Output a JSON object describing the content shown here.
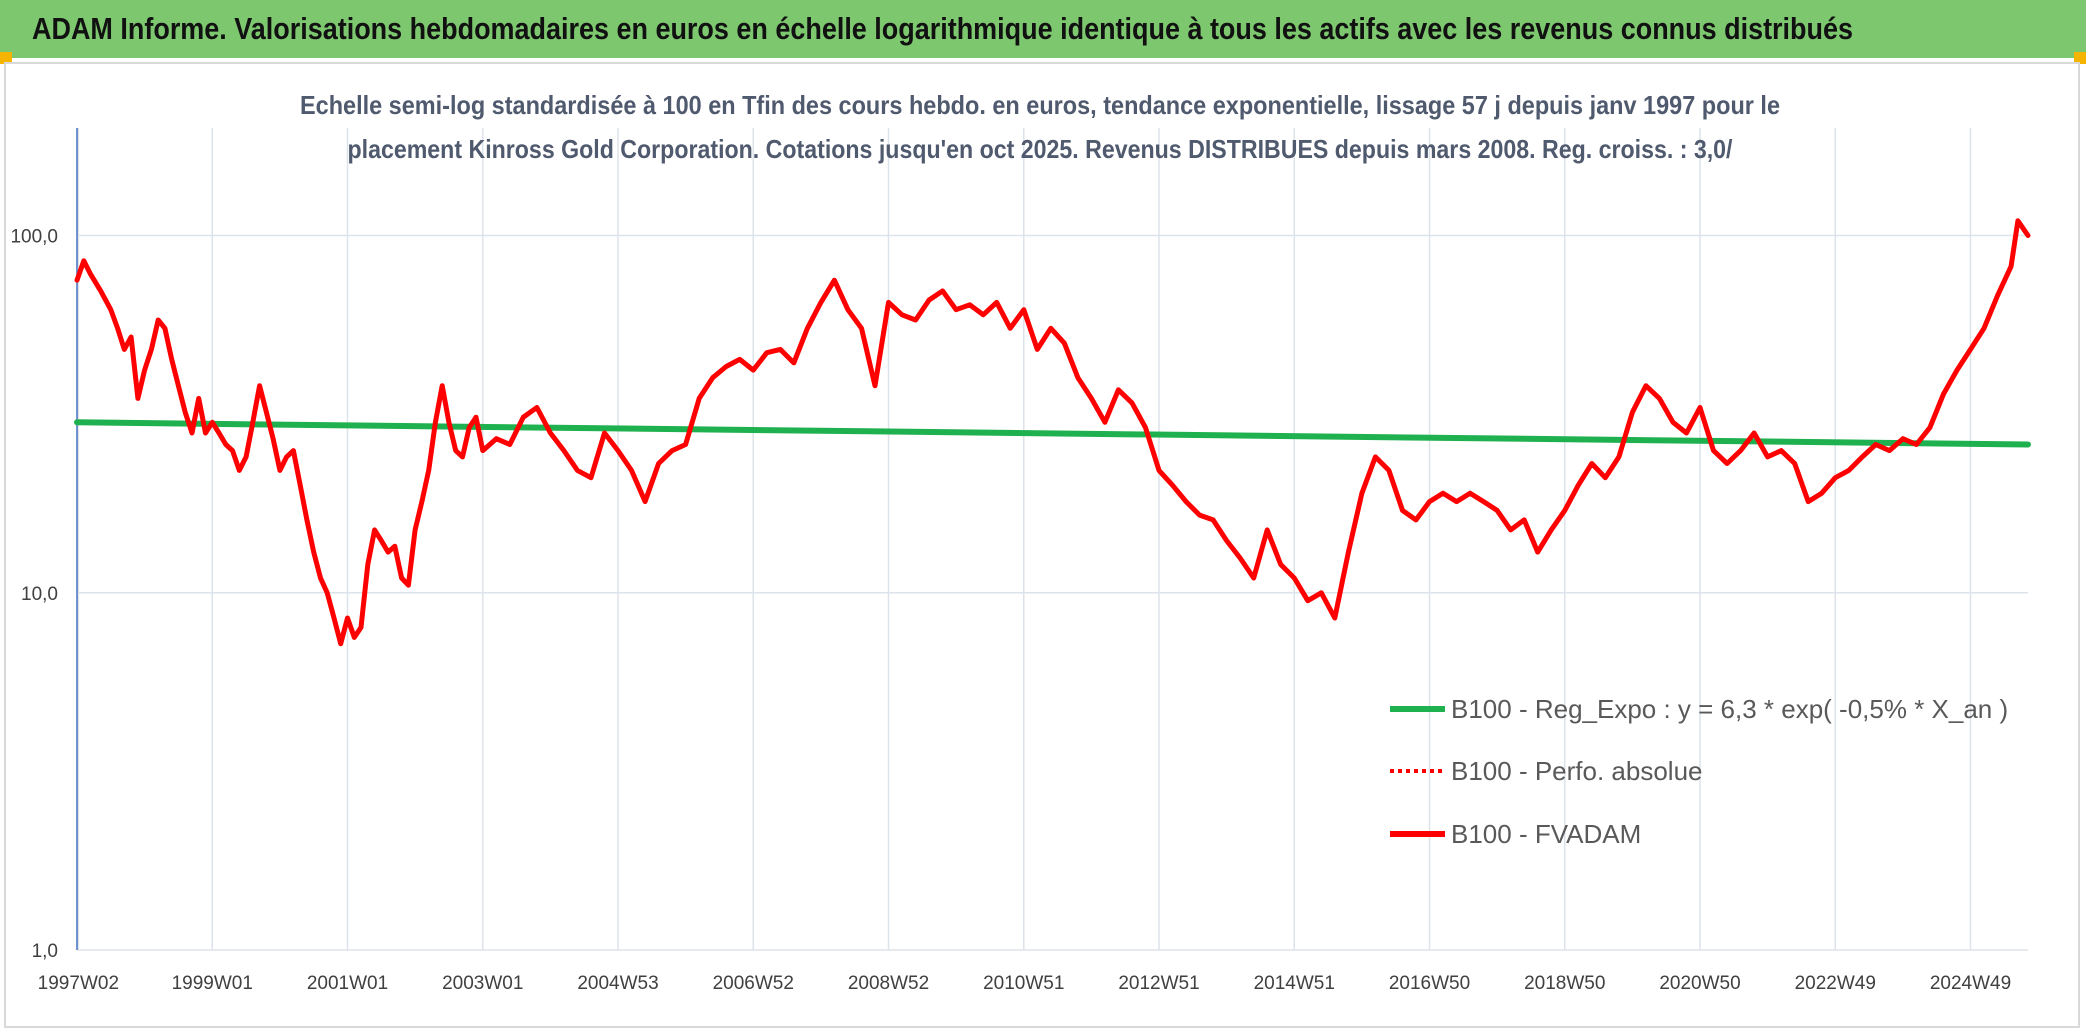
{
  "banner": {
    "title": "ADAM Informe. Valorisations hebdomadaires en euros en échelle logarithmique identique à tous les actifs avec les revenus connus distribués"
  },
  "colors": {
    "banner": "#7dc86f",
    "fvadam": "#ff0000",
    "regression": "#1fb04f",
    "grid": "#dde3ea"
  },
  "chart_data": {
    "type": "line",
    "title_lines": [
      "Echelle semi-log standardisée à 100 en Tfin des cours hebdo. en euros, tendance exponentielle, lissage 57 j depuis janv 1997 pour le",
      "placement Kinross Gold Corporation. Cotations jusqu'en oct 2025. Revenus DISTRIBUES depuis mars 2008. Reg. croiss. : 3,0/"
    ],
    "y_scale": "log",
    "ylim": [
      1,
      200
    ],
    "y_ticks": [
      {
        "value": 100,
        "label": "100,0"
      },
      {
        "value": 10,
        "label": "10,0"
      },
      {
        "value": 1,
        "label": "1,0"
      }
    ],
    "xlim": [
      1997.0,
      2025.85
    ],
    "x_ticks": [
      {
        "x": 1997.02,
        "label": "1997W02"
      },
      {
        "x": 1999.0,
        "label": "1999W01"
      },
      {
        "x": 2001.0,
        "label": "2001W01"
      },
      {
        "x": 2003.0,
        "label": "2003W01"
      },
      {
        "x": 2005.0,
        "label": "2004W53"
      },
      {
        "x": 2007.0,
        "label": "2006W52"
      },
      {
        "x": 2009.0,
        "label": "2008W52"
      },
      {
        "x": 2011.0,
        "label": "2010W51"
      },
      {
        "x": 2013.0,
        "label": "2012W51"
      },
      {
        "x": 2015.0,
        "label": "2014W51"
      },
      {
        "x": 2017.0,
        "label": "2016W50"
      },
      {
        "x": 2019.0,
        "label": "2018W50"
      },
      {
        "x": 2021.0,
        "label": "2020W50"
      },
      {
        "x": 2023.0,
        "label": "2022W49"
      },
      {
        "x": 2025.0,
        "label": "2024W49"
      }
    ],
    "legend_position": "right-middle",
    "series": [
      {
        "name": "B100 - Reg_Expo : y = 6,3 * exp( -0,5% *  X_an )",
        "style": "solid",
        "color": "#1fb04f",
        "x": [
          1997.0,
          2025.85
        ],
        "y": [
          30.0,
          26.0
        ]
      },
      {
        "name": "B100 - Perfo. absolue",
        "style": "dotted",
        "color": "#ff0000",
        "x": [],
        "y": []
      },
      {
        "name": "B100 - FVADAM",
        "style": "solid",
        "color": "#ff0000",
        "x": [
          1997.0,
          1997.1,
          1997.2,
          1997.35,
          1997.5,
          1997.6,
          1997.7,
          1997.8,
          1997.9,
          1998.0,
          1998.1,
          1998.2,
          1998.3,
          1998.4,
          1998.5,
          1998.6,
          1998.7,
          1998.8,
          1998.9,
          1999.0,
          1999.1,
          1999.2,
          1999.3,
          1999.4,
          1999.5,
          1999.6,
          1999.7,
          1999.8,
          1999.9,
          2000.0,
          2000.1,
          2000.2,
          2000.3,
          2000.4,
          2000.5,
          2000.6,
          2000.7,
          2000.8,
          2000.9,
          2001.0,
          2001.1,
          2001.2,
          2001.3,
          2001.4,
          2001.5,
          2001.6,
          2001.7,
          2001.8,
          2001.9,
          2002.0,
          2002.1,
          2002.2,
          2002.3,
          2002.4,
          2002.5,
          2002.6,
          2002.7,
          2002.8,
          2002.9,
          2003.0,
          2003.2,
          2003.4,
          2003.6,
          2003.8,
          2004.0,
          2004.2,
          2004.4,
          2004.6,
          2004.8,
          2005.0,
          2005.2,
          2005.4,
          2005.6,
          2005.8,
          2006.0,
          2006.2,
          2006.4,
          2006.6,
          2006.8,
          2007.0,
          2007.2,
          2007.4,
          2007.6,
          2007.8,
          2008.0,
          2008.2,
          2008.4,
          2008.6,
          2008.8,
          2009.0,
          2009.2,
          2009.4,
          2009.6,
          2009.8,
          2010.0,
          2010.2,
          2010.4,
          2010.6,
          2010.8,
          2011.0,
          2011.2,
          2011.4,
          2011.6,
          2011.8,
          2012.0,
          2012.2,
          2012.4,
          2012.6,
          2012.8,
          2013.0,
          2013.2,
          2013.4,
          2013.6,
          2013.8,
          2014.0,
          2014.2,
          2014.4,
          2014.6,
          2014.8,
          2015.0,
          2015.2,
          2015.4,
          2015.6,
          2015.8,
          2016.0,
          2016.2,
          2016.4,
          2016.6,
          2016.8,
          2017.0,
          2017.2,
          2017.4,
          2017.6,
          2017.8,
          2018.0,
          2018.2,
          2018.4,
          2018.6,
          2018.8,
          2019.0,
          2019.2,
          2019.4,
          2019.6,
          2019.8,
          2020.0,
          2020.2,
          2020.4,
          2020.6,
          2020.8,
          2021.0,
          2021.2,
          2021.4,
          2021.6,
          2021.8,
          2022.0,
          2022.2,
          2022.4,
          2022.6,
          2022.8,
          2023.0,
          2023.2,
          2023.4,
          2023.6,
          2023.8,
          2024.0,
          2024.2,
          2024.4,
          2024.6,
          2024.8,
          2025.0,
          2025.2,
          2025.4,
          2025.6,
          2025.7,
          2025.85
        ],
        "y": [
          75,
          85,
          78,
          70,
          62,
          55,
          48,
          52,
          35,
          42,
          48,
          58,
          55,
          45,
          38,
          32,
          28,
          35,
          28,
          30,
          28,
          26,
          25,
          22,
          24,
          30,
          38,
          32,
          27,
          22,
          24,
          25,
          20,
          16,
          13,
          11,
          10,
          8.5,
          7.2,
          8.5,
          7.5,
          8.0,
          12,
          15,
          14,
          13,
          13.5,
          11,
          10.5,
          15,
          18,
          22,
          30,
          38,
          30,
          25,
          24,
          29,
          31,
          25,
          27,
          26,
          31,
          33,
          28,
          25,
          22,
          21,
          28,
          25,
          22,
          18,
          23,
          25,
          26,
          35,
          40,
          43,
          45,
          42,
          47,
          48,
          44,
          55,
          65,
          75,
          62,
          55,
          38,
          65,
          60,
          58,
          66,
          70,
          62,
          64,
          60,
          65,
          55,
          62,
          48,
          55,
          50,
          40,
          35,
          30,
          37,
          34,
          29,
          22,
          20,
          18,
          16.5,
          16,
          14,
          12.5,
          11,
          15,
          12,
          11,
          9.5,
          10,
          8.5,
          13,
          19,
          24,
          22,
          17,
          16,
          18,
          19,
          18,
          19,
          18,
          17,
          15,
          16,
          13,
          15,
          17,
          20,
          23,
          21,
          24,
          32,
          38,
          35,
          30,
          28,
          33,
          25,
          23,
          25,
          28,
          24,
          25,
          23,
          18,
          19,
          21,
          22,
          24,
          26,
          25,
          27,
          26,
          29,
          36,
          42,
          48,
          55,
          68,
          82,
          110,
          100
        ]
      }
    ]
  }
}
